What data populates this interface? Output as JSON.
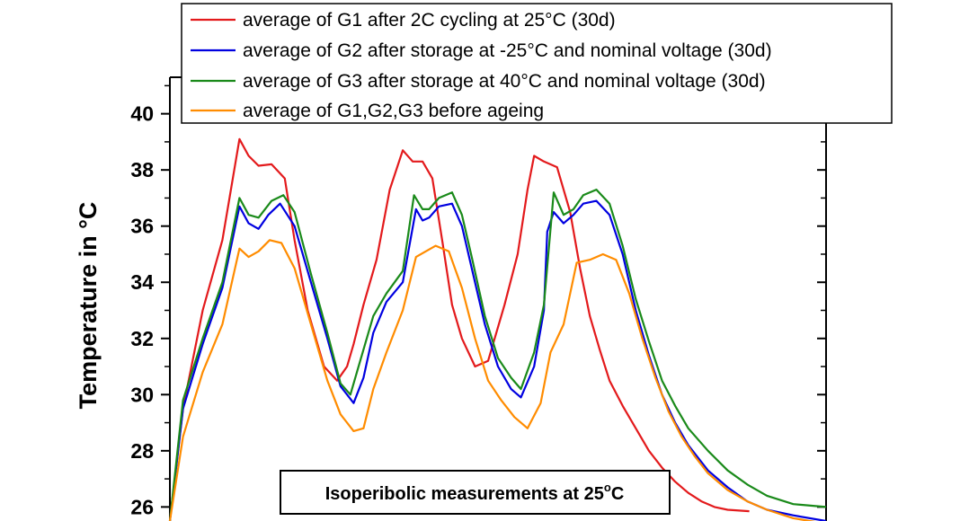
{
  "chart_data": {
    "type": "line",
    "title": "",
    "xlabel": "",
    "ylabel": "Temperature in °C",
    "ylim": [
      25.5,
      41.3
    ],
    "xlim": [
      0,
      100
    ],
    "yticks": [
      "26",
      "28",
      "30",
      "32",
      "34",
      "36",
      "38",
      "40"
    ],
    "grid": false,
    "legend_position": "top",
    "annotation": {
      "text": "Isoperibolic measurements at 25",
      "superscript": "o",
      "suffix": "C"
    },
    "series": [
      {
        "name": "average of G1 after 2C cycling at 25°C (30d)",
        "color": "#e31a1c",
        "x": [
          0,
          2,
          5,
          8,
          10.6,
          12,
          13.5,
          15.5,
          17.5,
          19,
          21,
          23.5,
          25.5,
          27,
          28,
          29.5,
          31.5,
          33.5,
          35.5,
          37,
          38.5,
          40,
          41.5,
          43,
          44.5,
          46.5,
          48.5,
          51,
          53,
          54.5,
          55.5,
          57,
          59,
          61,
          62.5,
          64,
          65.5,
          67,
          69,
          71,
          73,
          75,
          77,
          79,
          81,
          83,
          85,
          88.3
        ],
        "y": [
          25.5,
          29.5,
          33.0,
          35.5,
          39.1,
          38.5,
          38.15,
          38.2,
          37.7,
          35.5,
          33.0,
          31.0,
          30.5,
          31.0,
          31.8,
          33.2,
          34.8,
          37.3,
          38.7,
          38.3,
          38.3,
          37.7,
          35.5,
          33.2,
          32.0,
          31.0,
          31.2,
          33.2,
          35.0,
          37.3,
          38.5,
          38.3,
          38.1,
          36.5,
          34.5,
          32.8,
          31.6,
          30.5,
          29.6,
          28.8,
          28.0,
          27.4,
          26.9,
          26.5,
          26.2,
          26.0,
          25.9,
          25.85
        ]
      },
      {
        "name": "average of G2 after storage at -25°C and nominal voltage (30d)",
        "color": "#0000e0",
        "x": [
          0,
          2,
          5,
          8,
          10.6,
          12,
          13.5,
          15,
          16.8,
          19,
          21.5,
          24,
          26,
          28,
          29.5,
          31,
          33,
          35.5,
          37.5,
          38.5,
          39.5,
          41,
          43,
          44.5,
          46,
          48,
          50,
          52,
          53.5,
          55.5,
          57,
          57.5,
          58.5,
          60,
          61.5,
          63,
          65,
          67,
          69,
          71,
          73,
          75,
          77,
          79,
          82,
          85,
          88,
          91,
          95,
          100
        ],
        "y": [
          25.5,
          29.5,
          31.8,
          33.8,
          36.7,
          36.1,
          35.9,
          36.4,
          36.8,
          36.0,
          34.0,
          32.0,
          30.3,
          29.7,
          30.6,
          32.2,
          33.3,
          34.0,
          36.6,
          36.2,
          36.3,
          36.7,
          36.8,
          36.0,
          34.5,
          32.5,
          31.0,
          30.2,
          29.9,
          31.0,
          33.0,
          35.8,
          36.5,
          36.1,
          36.4,
          36.8,
          36.9,
          36.4,
          35.0,
          33.0,
          31.4,
          30.0,
          29.0,
          28.2,
          27.3,
          26.7,
          26.2,
          25.9,
          25.7,
          25.5
        ]
      },
      {
        "name": "average of G3 after storage at 40°C and nominal voltage (30d)",
        "color": "#1a8a1a",
        "x": [
          0,
          2,
          5,
          8,
          10.6,
          12,
          13.5,
          15.5,
          17.3,
          19,
          21.5,
          24,
          26,
          27.5,
          29,
          31,
          33,
          35.5,
          37.2,
          38.5,
          39.5,
          41,
          43,
          44.5,
          46,
          48,
          50,
          52,
          53.5,
          55.5,
          57,
          58.5,
          60,
          61.5,
          63,
          65,
          67,
          69,
          71,
          73,
          75,
          77,
          79,
          82,
          85,
          88,
          91,
          95,
          100
        ],
        "y": [
          25.5,
          29.8,
          32.0,
          34.0,
          37.0,
          36.4,
          36.3,
          36.9,
          37.1,
          36.5,
          34.3,
          32.2,
          30.4,
          30.0,
          31.2,
          32.8,
          33.6,
          34.4,
          37.1,
          36.6,
          36.6,
          37.0,
          37.2,
          36.4,
          34.9,
          32.8,
          31.3,
          30.6,
          30.2,
          31.5,
          33.2,
          37.2,
          36.4,
          36.6,
          37.1,
          37.3,
          36.8,
          35.3,
          33.4,
          31.9,
          30.5,
          29.6,
          28.8,
          28.0,
          27.3,
          26.8,
          26.4,
          26.1,
          26.0
        ]
      },
      {
        "name": "average of G1,G2,G3 before ageing",
        "color": "#ff8c00",
        "x": [
          0,
          2,
          5,
          8,
          10.6,
          12,
          13.5,
          15.2,
          17.0,
          19,
          21.5,
          24,
          26,
          28,
          29.5,
          31,
          33,
          35.5,
          37.5,
          39,
          40.5,
          42.5,
          44.5,
          46.5,
          48.5,
          50.5,
          52.5,
          54.5,
          56.5,
          58,
          60,
          62,
          64,
          66,
          68,
          70,
          72,
          74,
          76,
          78,
          80,
          82,
          85,
          88,
          91,
          95,
          100
        ],
        "y": [
          25.5,
          28.5,
          30.8,
          32.5,
          35.2,
          34.9,
          35.1,
          35.5,
          35.4,
          34.5,
          32.5,
          30.5,
          29.3,
          28.7,
          28.8,
          30.2,
          31.5,
          33.0,
          34.9,
          35.1,
          35.3,
          35.1,
          33.8,
          32.0,
          30.5,
          29.8,
          29.2,
          28.8,
          29.7,
          31.5,
          32.5,
          34.7,
          34.8,
          35.0,
          34.8,
          33.6,
          32.0,
          30.6,
          29.4,
          28.5,
          27.8,
          27.2,
          26.6,
          26.2,
          25.9,
          25.6,
          25.4
        ]
      }
    ]
  }
}
